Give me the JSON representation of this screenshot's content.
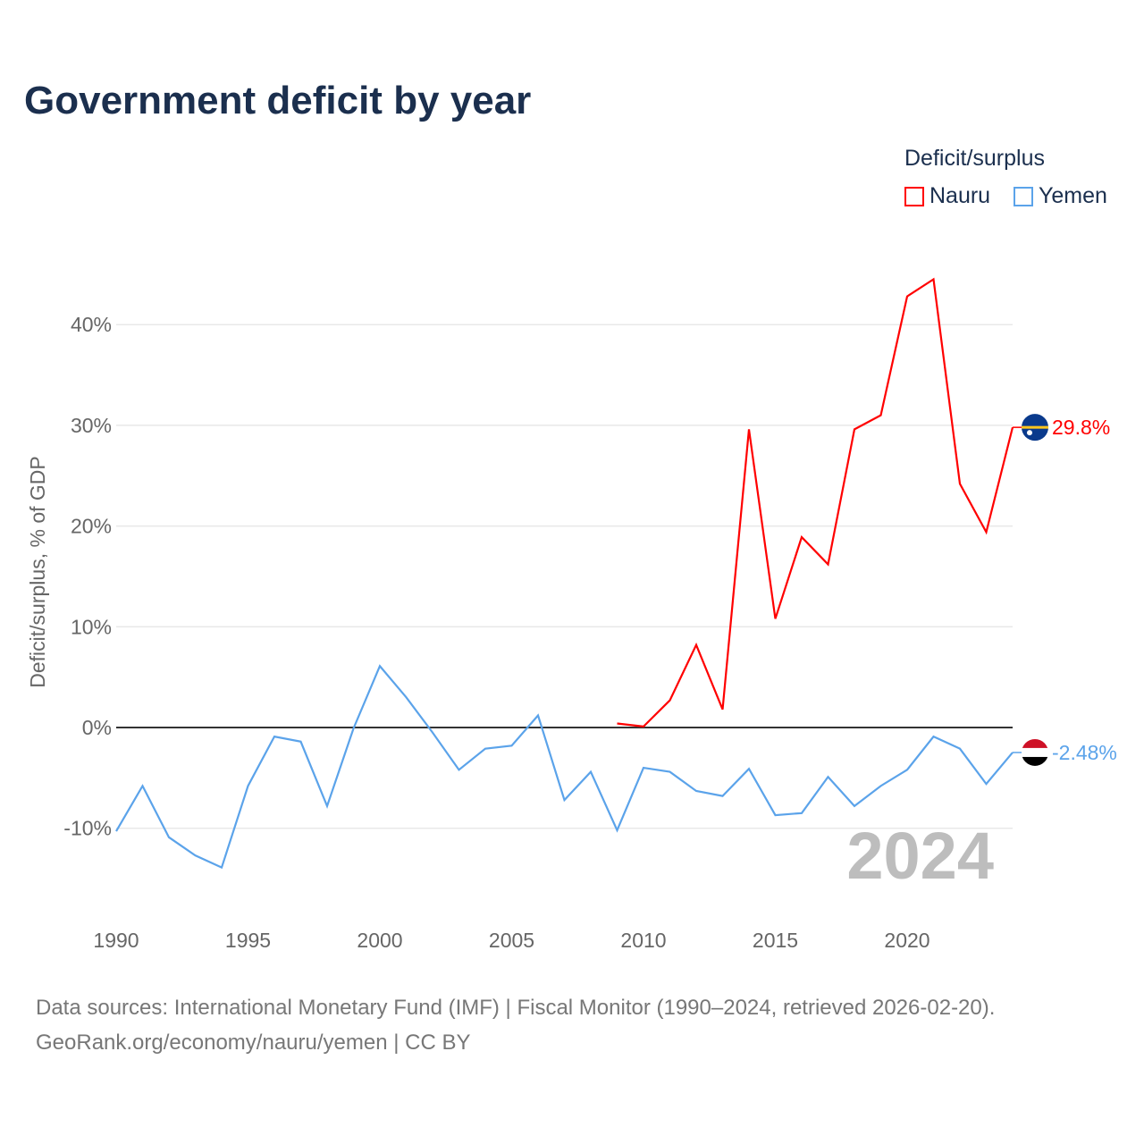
{
  "chart_data": {
    "type": "line",
    "title": "Government deficit by year",
    "ylabel": "Deficit/surplus, % of GDP",
    "xlabel": "",
    "xlim": [
      1990,
      2024
    ],
    "ylim": [
      -16,
      46
    ],
    "xticks": [
      1990,
      1995,
      2000,
      2005,
      2010,
      2015,
      2020
    ],
    "xtick_labels": [
      "1990",
      "1995",
      "2000",
      "2005",
      "2010",
      "2015",
      "2020"
    ],
    "yticks": [
      -10,
      0,
      10,
      20,
      30,
      40
    ],
    "ytick_labels": [
      "-10%",
      "0%",
      "10%",
      "20%",
      "30%",
      "40%"
    ],
    "legend_title": "Deficit/surplus",
    "legend_position": "top-right",
    "watermark_year": "2024",
    "series": [
      {
        "name": "Nauru",
        "color": "#ff0000",
        "end_label": "29.8%",
        "x": [
          2009,
          2010,
          2011,
          2012,
          2013,
          2014,
          2015,
          2016,
          2017,
          2018,
          2019,
          2020,
          2021,
          2022,
          2023,
          2024
        ],
        "values": [
          0.4,
          0.1,
          2.7,
          8.2,
          1.8,
          29.6,
          10.8,
          18.9,
          16.2,
          29.6,
          31.0,
          42.8,
          44.5,
          24.2,
          19.4,
          29.8
        ]
      },
      {
        "name": "Yemen",
        "color": "#5ba3ea",
        "end_label": "-2.48%",
        "x": [
          1990,
          1991,
          1992,
          1993,
          1994,
          1995,
          1996,
          1997,
          1998,
          1999,
          2000,
          2001,
          2002,
          2003,
          2004,
          2005,
          2006,
          2007,
          2008,
          2009,
          2010,
          2011,
          2012,
          2013,
          2014,
          2015,
          2016,
          2017,
          2018,
          2019,
          2020,
          2021,
          2022,
          2023,
          2024
        ],
        "values": [
          -10.3,
          -5.8,
          -10.9,
          -12.7,
          -13.9,
          -5.8,
          -0.9,
          -1.4,
          -7.8,
          -0.1,
          6.1,
          3.0,
          -0.5,
          -4.2,
          -2.1,
          -1.8,
          1.2,
          -7.2,
          -4.4,
          -10.2,
          -4.0,
          -4.4,
          -6.3,
          -6.8,
          -4.1,
          -8.7,
          -8.5,
          -4.9,
          -7.8,
          -5.8,
          -4.2,
          -0.9,
          -2.1,
          -5.6,
          -2.48
        ]
      }
    ]
  },
  "footer": {
    "line1": "Data sources: International Monetary Fund (IMF) | Fiscal Monitor (1990–2024, retrieved 2026-02-20).",
    "line2": "GeoRank.org/economy/nauru/yemen | CC BY"
  }
}
